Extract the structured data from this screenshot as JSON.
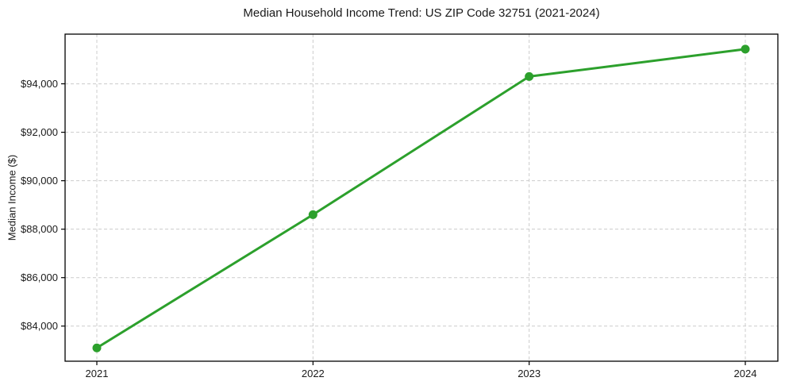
{
  "chart_data": {
    "type": "line",
    "title": "Median Household Income Trend: US ZIP Code 32751 (2021-2024)",
    "ylabel": "Median Income ($)",
    "xlabel": "",
    "categories": [
      "2021",
      "2022",
      "2023",
      "2024"
    ],
    "series": [
      {
        "name": "Median Household Income",
        "values": [
          83100,
          88600,
          94300,
          95430
        ]
      }
    ],
    "yticks": [
      84000,
      86000,
      88000,
      90000,
      92000,
      94000
    ],
    "ytick_labels": [
      "$84,000",
      "$86,000",
      "$88,000",
      "$90,000",
      "$92,000",
      "$94,000"
    ],
    "ylim": [
      82550,
      96050
    ],
    "grid": true,
    "grid_style": "dashed",
    "legend_position": "none",
    "colors": {
      "line": "#2ca02c",
      "marker": "#2ca02c",
      "grid": "#cccccc",
      "axis": "#000000",
      "text": "#1a1a1a",
      "background": "#ffffff"
    }
  }
}
